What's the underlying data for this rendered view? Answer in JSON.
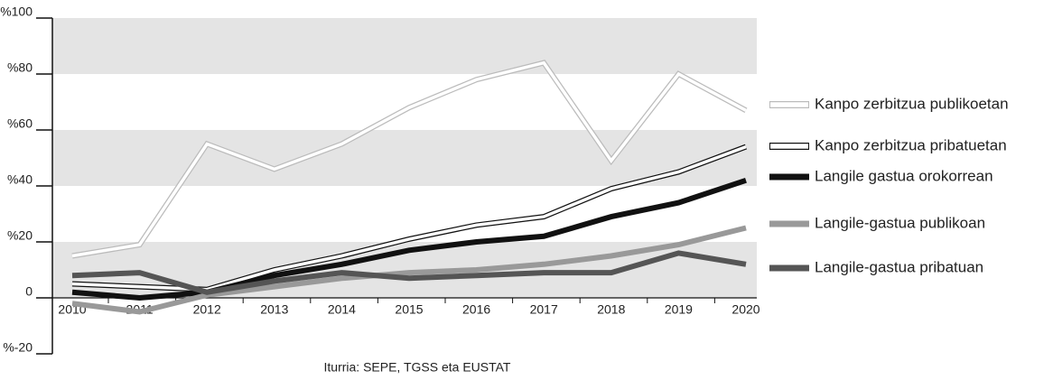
{
  "chart_data": {
    "type": "line",
    "categories": [
      "2010",
      "2011",
      "2012",
      "2013",
      "2014",
      "2015",
      "2016",
      "2017",
      "2018",
      "2019",
      "2020"
    ],
    "series": [
      {
        "name": "Kanpo zerbitzua publikoetan",
        "color": "#ffffff",
        "outline": "#bbbbbb",
        "values": [
          15,
          19,
          55,
          46,
          55,
          68,
          78,
          84,
          49,
          80,
          67
        ]
      },
      {
        "name": "Kanpo zerbitzua pribatuetan",
        "color": "#ffffff",
        "outline": "#111111",
        "values": [
          5,
          4,
          3,
          10,
          15,
          21,
          26,
          29,
          39,
          45,
          54
        ]
      },
      {
        "name": "Langile gastua orokorrean",
        "color": "#111111",
        "outline": "#111111",
        "values": [
          2,
          0,
          2,
          8,
          12,
          17,
          20,
          22,
          29,
          34,
          42
        ]
      },
      {
        "name": "Langile-gastua publikoan",
        "color": "#999999",
        "outline": "#999999",
        "values": [
          -2,
          -5,
          1,
          4,
          7,
          9,
          10,
          12,
          15,
          19,
          25
        ]
      },
      {
        "name": "Langile-gastua pribatuan",
        "color": "#555555",
        "outline": "#555555",
        "values": [
          8,
          9,
          2,
          6,
          9,
          7,
          8,
          9,
          9,
          16,
          12
        ]
      }
    ],
    "ylim": [
      -20,
      100
    ],
    "yticks": [
      {
        "value": 100,
        "label": "%100"
      },
      {
        "value": 80,
        "label": "%80"
      },
      {
        "value": 60,
        "label": "%60"
      },
      {
        "value": 40,
        "label": "%40"
      },
      {
        "value": 20,
        "label": "%20"
      },
      0,
      {
        "value": -20,
        "label": "%-20"
      }
    ],
    "source": "Iturria: SEPE, TGSS eta EUSTAT"
  }
}
